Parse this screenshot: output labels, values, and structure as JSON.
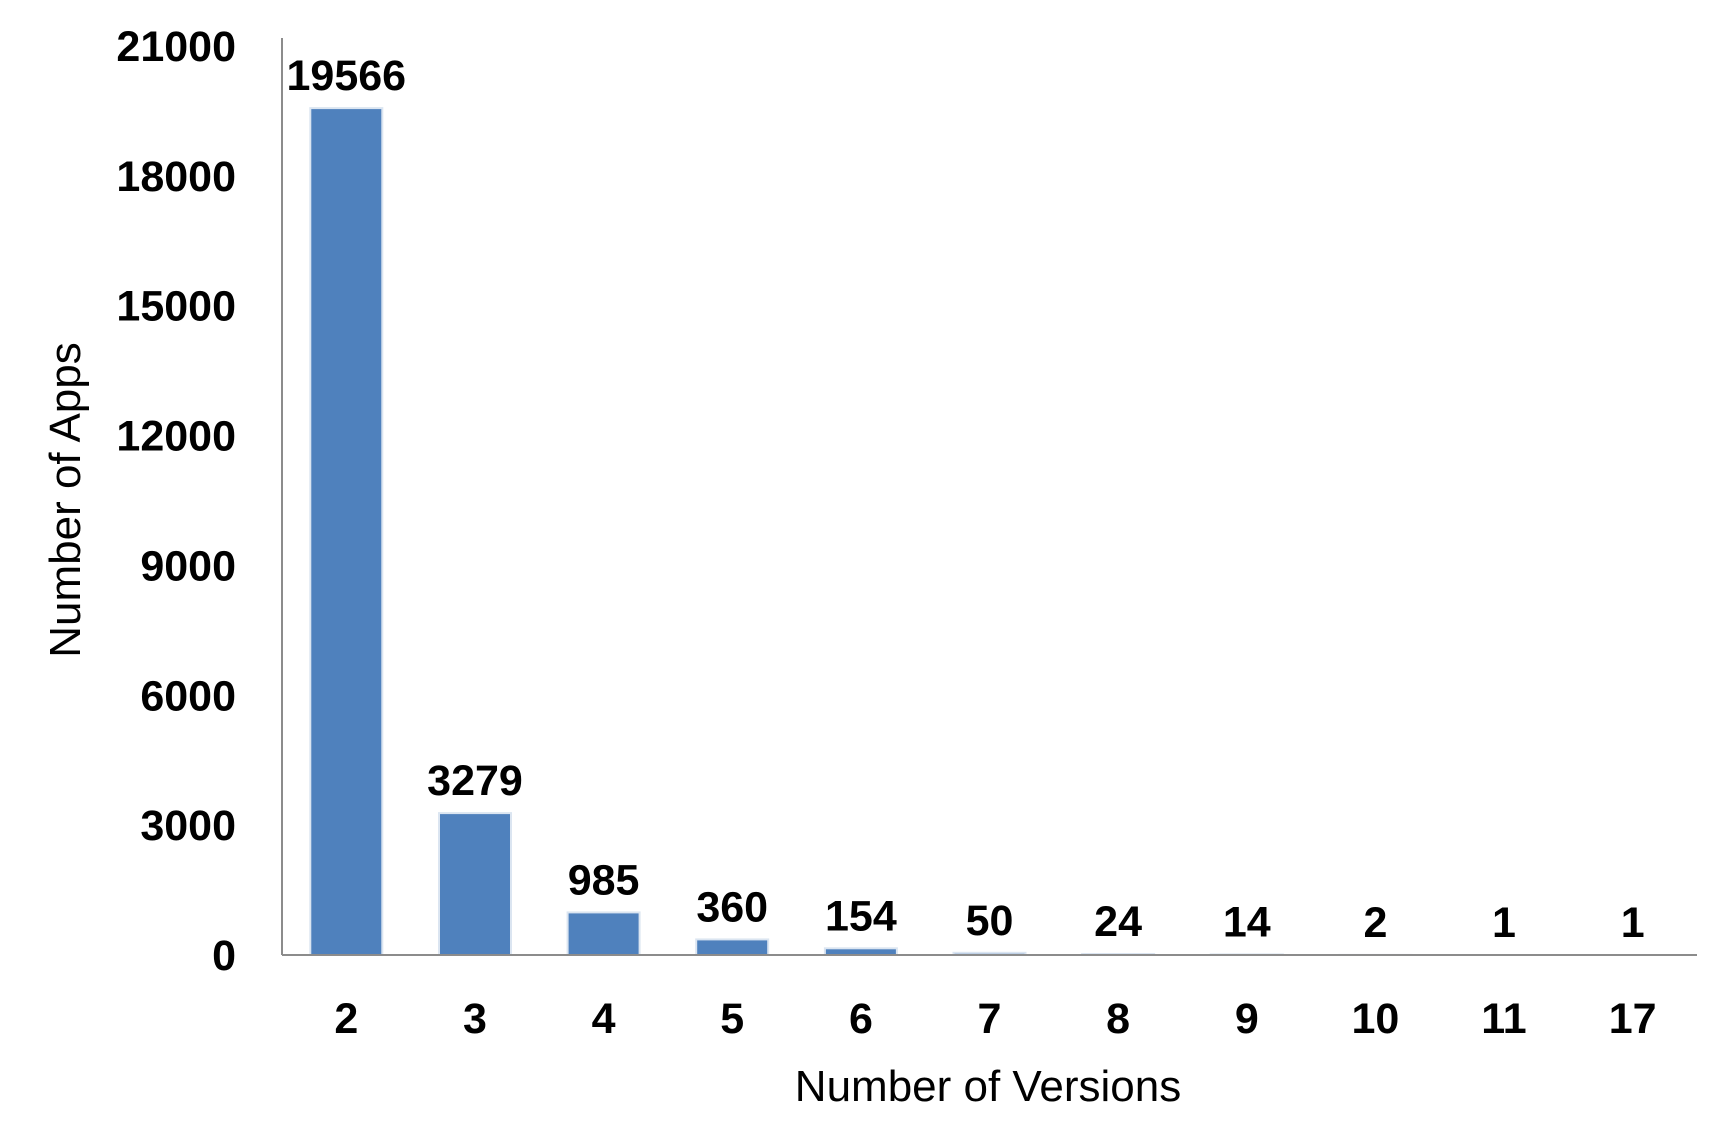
{
  "chart_data": {
    "type": "bar",
    "title": "",
    "xlabel": "Number of Versions",
    "ylabel": "Number of Apps",
    "categories": [
      "2",
      "3",
      "4",
      "5",
      "6",
      "7",
      "8",
      "9",
      "10",
      "11",
      "17"
    ],
    "values": [
      19566,
      3279,
      985,
      360,
      154,
      50,
      24,
      14,
      2,
      1,
      1
    ],
    "data_labels": [
      "19566",
      "3279",
      "985",
      "360",
      "154",
      "50",
      "24",
      "14",
      "2",
      "1",
      "1"
    ],
    "y_ticks": [
      "0",
      "3000",
      "6000",
      "9000",
      "12000",
      "15000",
      "18000",
      "21000"
    ],
    "y_tick_values": [
      0,
      3000,
      6000,
      9000,
      12000,
      15000,
      18000,
      21000
    ],
    "ylim": [
      0,
      21000
    ],
    "grid": false,
    "legend": "none",
    "bar_color": "#4f81bd",
    "axis_color": "#8c8c8c"
  }
}
